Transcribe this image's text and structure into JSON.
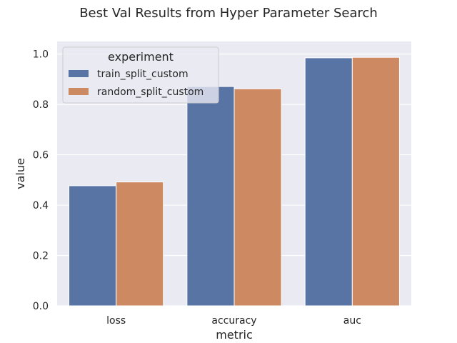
{
  "chart_data": {
    "type": "bar",
    "title": "Best Val Results from Hyper Parameter Search",
    "xlabel": "metric",
    "ylabel": "value",
    "categories": [
      "loss",
      "accuracy",
      "auc"
    ],
    "series": [
      {
        "name": "train_split_custom",
        "values": [
          0.477,
          0.871,
          0.985
        ],
        "color": "#5874a4"
      },
      {
        "name": "random_split_custom",
        "values": [
          0.492,
          0.862,
          0.987
        ],
        "color": "#cd8962"
      }
    ],
    "ylim": [
      0,
      1.05
    ],
    "yticks": [
      0.0,
      0.2,
      0.4,
      0.6,
      0.8,
      1.0
    ],
    "ytick_labels": [
      "0.0",
      "0.2",
      "0.4",
      "0.6",
      "0.8",
      "1.0"
    ],
    "grid": true,
    "legend": {
      "title": "experiment",
      "placement": "top-left"
    },
    "background_color": "#eaeaf2",
    "grid_color": "#ffffff"
  }
}
